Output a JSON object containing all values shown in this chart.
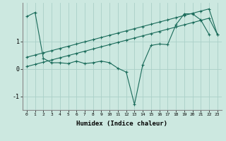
{
  "xlabel": "Humidex (Indice chaleur)",
  "background_color": "#cce8e0",
  "line_color": "#1a6b5a",
  "xlim": [
    -0.5,
    23.5
  ],
  "ylim": [
    -1.5,
    2.4
  ],
  "yticks": [
    -1,
    0,
    1
  ],
  "xticks": [
    0,
    1,
    2,
    3,
    4,
    5,
    6,
    7,
    8,
    9,
    10,
    11,
    12,
    13,
    14,
    15,
    16,
    17,
    18,
    19,
    20,
    21,
    22,
    23
  ],
  "series1_x": [
    0,
    1,
    2,
    3,
    4,
    5,
    6,
    7,
    8,
    9,
    10,
    11,
    12,
    13,
    14,
    15,
    16,
    17,
    18,
    19,
    20,
    21,
    22
  ],
  "series1_y": [
    1.9,
    2.05,
    0.38,
    0.22,
    0.22,
    0.19,
    0.28,
    0.19,
    0.22,
    0.28,
    0.22,
    0.02,
    -0.12,
    -1.3,
    0.15,
    0.85,
    0.9,
    0.88,
    1.6,
    2.0,
    2.0,
    1.78,
    1.25
  ],
  "series2_x": [
    0,
    1,
    2,
    3,
    4,
    5,
    6,
    7,
    8,
    9,
    10,
    11,
    12,
    13,
    14,
    15,
    16,
    17,
    18,
    19,
    20,
    21,
    22,
    23
  ],
  "series2_y": [
    0.42,
    0.5,
    0.58,
    0.66,
    0.74,
    0.82,
    0.9,
    0.98,
    1.06,
    1.14,
    1.22,
    1.3,
    1.38,
    1.46,
    1.54,
    1.62,
    1.7,
    1.78,
    1.86,
    1.94,
    2.02,
    2.1,
    2.18,
    1.25
  ],
  "series3_x": [
    0,
    1,
    2,
    3,
    4,
    5,
    6,
    7,
    8,
    9,
    10,
    11,
    12,
    13,
    14,
    15,
    16,
    17,
    18,
    19,
    20,
    21,
    22,
    23
  ],
  "series3_y": [
    0.08,
    0.16,
    0.24,
    0.32,
    0.4,
    0.48,
    0.56,
    0.64,
    0.72,
    0.8,
    0.88,
    0.96,
    1.04,
    1.12,
    1.2,
    1.28,
    1.36,
    1.44,
    1.52,
    1.6,
    1.68,
    1.76,
    1.84,
    1.25
  ],
  "grid_color": "#aad0c8",
  "marker": "+"
}
